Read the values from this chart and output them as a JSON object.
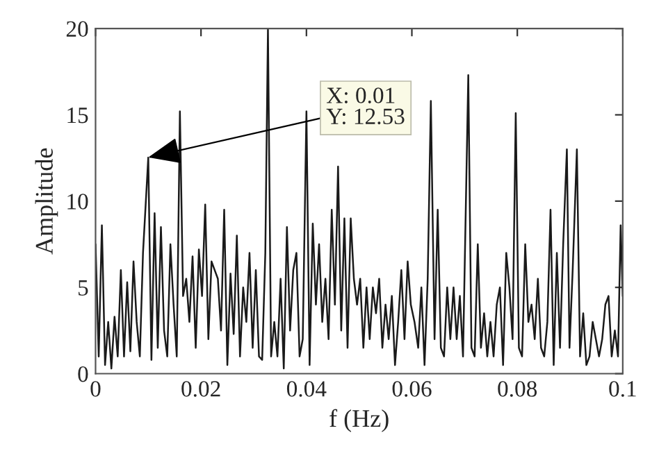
{
  "chart_data": {
    "type": "line",
    "xlabel": "f (Hz)",
    "ylabel": "Amplitude",
    "xlim": [
      0,
      0.1
    ],
    "xticks": [
      0,
      0.02,
      0.04,
      0.06,
      0.08,
      0.1
    ],
    "ylim": [
      0,
      20
    ],
    "yticks": [
      0,
      5,
      10,
      15,
      20
    ],
    "grid": false,
    "legend": false,
    "marker": "none",
    "line_style": "solid",
    "annotations": [
      {
        "text": "X: 0.01\nY: 12.53",
        "x": 0.01,
        "y": 12.53
      }
    ],
    "series": [
      {
        "color": "#1a1a1a",
        "x": [
          0,
          0.0006,
          0.0012,
          0.0018,
          0.0024,
          0.003,
          0.0036,
          0.0042,
          0.0048,
          0.0054,
          0.006,
          0.0066,
          0.0072,
          0.0078,
          0.0084,
          0.009,
          0.01,
          0.0106,
          0.0112,
          0.0118,
          0.0124,
          0.013,
          0.0136,
          0.0142,
          0.0148,
          0.0154,
          0.016,
          0.0166,
          0.0172,
          0.0178,
          0.0184,
          0.019,
          0.0196,
          0.0202,
          0.0208,
          0.0214,
          0.022,
          0.0226,
          0.0232,
          0.0238,
          0.0244,
          0.025,
          0.0256,
          0.0262,
          0.0268,
          0.0274,
          0.028,
          0.0286,
          0.0292,
          0.0298,
          0.0304,
          0.031,
          0.0316,
          0.0322,
          0.0327,
          0.0333,
          0.0339,
          0.0345,
          0.0351,
          0.0357,
          0.0363,
          0.0369,
          0.0375,
          0.0381,
          0.0387,
          0.0393,
          0.04,
          0.0406,
          0.0412,
          0.0418,
          0.0424,
          0.043,
          0.0436,
          0.0442,
          0.0448,
          0.0454,
          0.046,
          0.0466,
          0.0472,
          0.0478,
          0.0484,
          0.049,
          0.0496,
          0.0502,
          0.0508,
          0.0514,
          0.052,
          0.0526,
          0.0532,
          0.0538,
          0.0544,
          0.055,
          0.0556,
          0.0562,
          0.0568,
          0.0574,
          0.058,
          0.0586,
          0.0592,
          0.0598,
          0.0605,
          0.0612,
          0.0618,
          0.0624,
          0.063,
          0.0636,
          0.0643,
          0.0649,
          0.0655,
          0.0661,
          0.0667,
          0.0673,
          0.0679,
          0.0685,
          0.0691,
          0.0697,
          0.0707,
          0.0713,
          0.0719,
          0.0725,
          0.0731,
          0.0737,
          0.0743,
          0.0749,
          0.0755,
          0.0761,
          0.0767,
          0.0773,
          0.0779,
          0.0785,
          0.0791,
          0.0797,
          0.0803,
          0.0809,
          0.0815,
          0.0821,
          0.0827,
          0.0833,
          0.0839,
          0.0845,
          0.0851,
          0.0857,
          0.0863,
          0.0869,
          0.0875,
          0.0881,
          0.0887,
          0.0894,
          0.0899,
          0.0905,
          0.0913,
          0.0919,
          0.0925,
          0.0931,
          0.0937,
          0.0943,
          0.0949,
          0.0955,
          0.0961,
          0.0967,
          0.0973,
          0.0979,
          0.0985,
          0.0991,
          0.0996,
          0.1
        ],
        "values": [
          7.5,
          1,
          8.6,
          0.5,
          3,
          0.3,
          3.3,
          1,
          6,
          1,
          5.3,
          1.3,
          6.5,
          3,
          1,
          7,
          12.53,
          0.8,
          9.3,
          1.5,
          8.5,
          2.5,
          1,
          7.5,
          4,
          1,
          15.2,
          4.5,
          5.5,
          3,
          6.8,
          1.5,
          7.2,
          4.5,
          9.8,
          2,
          6.5,
          6,
          5.5,
          2.5,
          9.5,
          0.5,
          5.8,
          2.3,
          8,
          1,
          5,
          3,
          7,
          1.5,
          6,
          1,
          0.8,
          7,
          20,
          1,
          3,
          1,
          5.5,
          0.3,
          8.5,
          2.5,
          6,
          7,
          1,
          2,
          15.2,
          0.5,
          8.7,
          4,
          7.5,
          3,
          5.5,
          2,
          9.5,
          4,
          12,
          2.5,
          9,
          1.5,
          9,
          5.5,
          4,
          5.5,
          1.5,
          5,
          2,
          5,
          3.5,
          5.5,
          1.5,
          4,
          2,
          4.5,
          0.5,
          3,
          6,
          2,
          6.5,
          4,
          3,
          1.5,
          5,
          0.5,
          5.5,
          15.8,
          2,
          9.5,
          1.5,
          1,
          5,
          2,
          5,
          2,
          4.5,
          1,
          17.3,
          1.5,
          1,
          7.5,
          1.5,
          3.5,
          1,
          3,
          1,
          4,
          5,
          0.5,
          7,
          5,
          2,
          15.1,
          1.5,
          1,
          7.5,
          3,
          4,
          2,
          5.5,
          1.5,
          1,
          3,
          9.5,
          0.5,
          7,
          1.5,
          7.5,
          13,
          1.5,
          6,
          13,
          1,
          3.5,
          0.5,
          1,
          3,
          2,
          1,
          2,
          4,
          4.5,
          1,
          2.5,
          1,
          8.6,
          4.5
        ]
      }
    ]
  }
}
